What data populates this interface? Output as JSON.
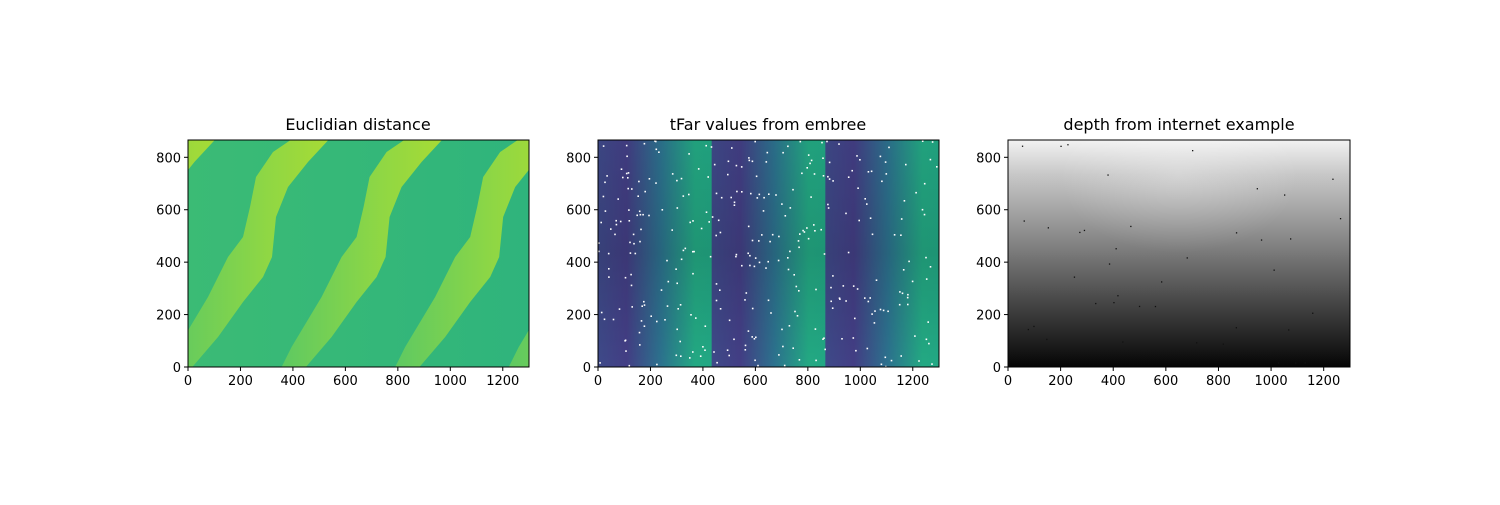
{
  "chart_data": [
    {
      "type": "heatmap",
      "title": "Euclidian distance",
      "colormap": "viridis",
      "xlim": [
        0,
        1300
      ],
      "ylim": [
        0,
        866
      ],
      "xticks": [
        0,
        200,
        400,
        600,
        800,
        1000,
        1200
      ],
      "yticks": [
        0,
        200,
        400,
        600,
        800
      ],
      "xtick_labels": [
        "0",
        "200",
        "400",
        "600",
        "800",
        "1000",
        "1200"
      ],
      "ytick_labels": [
        "0",
        "200",
        "400",
        "600",
        "800"
      ],
      "description_values": {
        "dominant_colors": [
          "#35b779",
          "#8fd744",
          "#6ccd5a",
          "#2fb47c"
        ],
        "stripe_period_x": 433
      }
    },
    {
      "type": "heatmap",
      "title": "tFar values from embree",
      "colormap": "viridis",
      "xlim": [
        0,
        1300
      ],
      "ylim": [
        0,
        866
      ],
      "xticks": [
        0,
        200,
        400,
        600,
        800,
        1000,
        1200
      ],
      "yticks": [
        0,
        200,
        400,
        600,
        800
      ],
      "xtick_labels": [
        "0",
        "200",
        "400",
        "600",
        "800",
        "1000",
        "1200"
      ],
      "ytick_labels": [
        "0",
        "200",
        "400",
        "600",
        "800"
      ],
      "description_values": {
        "panel_boundaries_x": [
          433,
          866
        ],
        "colors": [
          "#404688",
          "#3e4c8a",
          "#2a788e",
          "#22a884"
        ]
      }
    },
    {
      "type": "heatmap",
      "title": "depth from internet example",
      "colormap": "gray",
      "xlim": [
        0,
        1300
      ],
      "ylim": [
        0,
        866
      ],
      "xticks": [
        0,
        200,
        400,
        600,
        800,
        1000,
        1200
      ],
      "yticks": [
        0,
        200,
        400,
        600,
        800
      ],
      "xtick_labels": [
        "0",
        "200",
        "400",
        "600",
        "800",
        "1000",
        "1200"
      ],
      "ytick_labels": [
        "0",
        "200",
        "400",
        "600",
        "800"
      ]
    }
  ]
}
